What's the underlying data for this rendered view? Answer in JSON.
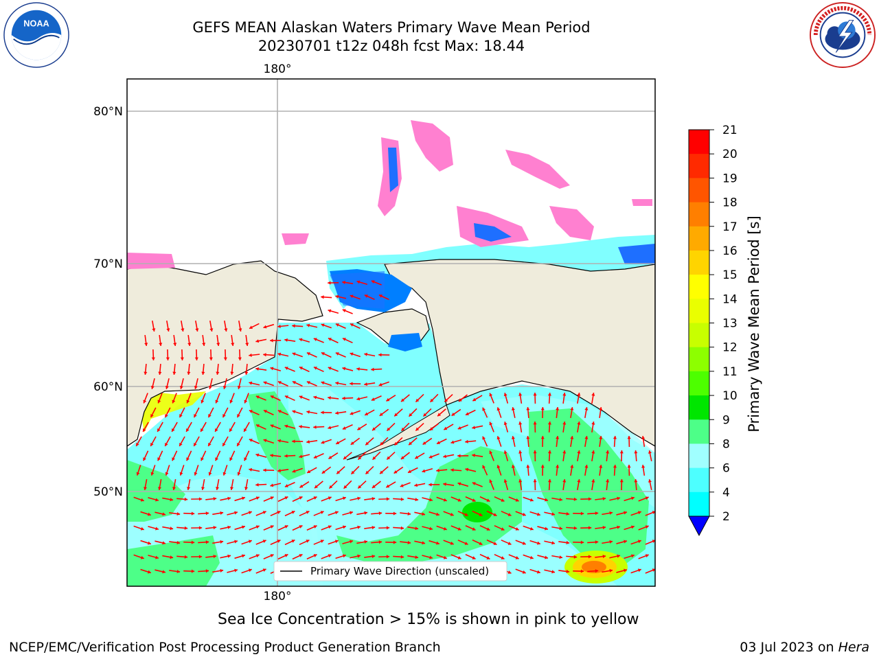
{
  "header": {
    "title_line_1": "GEFS MEAN Alaskan Waters Primary Wave Mean Period",
    "title_line_2": "20230701 t12z 048h fcst   Max: 18.44"
  },
  "logos": {
    "left": {
      "text": "NOAA",
      "ring_text": "NATIONAL OCEANIC AND ATMOSPHERIC ADMINISTRATION · U.S. DEPARTMENT OF COMMERCE",
      "icon": "noaa-logo"
    },
    "right": {
      "ring_text": "NATIONAL WEATHER SERVICE",
      "icon": "nws-logo"
    }
  },
  "map": {
    "top_lon_label": "180°",
    "bottom_lon_label": "180°",
    "lat_labels": [
      "80°N",
      "70°N",
      "60°N",
      "50°N"
    ],
    "legend_label": "Primary Wave Direction (unscaled)",
    "arrow_color": "#ff0000",
    "land_color": "#efecdc",
    "ocean_color": "#80ffff"
  },
  "colorbar": {
    "label": "Primary Wave Mean Period [s]",
    "ticks": [
      "21",
      "20",
      "19",
      "18",
      "17",
      "16",
      "15",
      "14",
      "13",
      "12",
      "11",
      "10",
      "9",
      "8",
      "6",
      "4",
      "2"
    ],
    "colors": [
      "#ff0000",
      "#ff2a00",
      "#ff5500",
      "#ff7f00",
      "#ffaa00",
      "#ffd400",
      "#ffff00",
      "#eaff00",
      "#c8ff00",
      "#8dff00",
      "#4dff00",
      "#00e600",
      "#4dff88",
      "#a0ffff",
      "#4dffff",
      "#00ffff",
      "#007fff"
    ],
    "extend_color": "#0000ff"
  },
  "notes": {
    "ice": "Sea Ice Concentration > 15% is shown in pink to yellow"
  },
  "footer": {
    "left": "NCEP/EMC/Verification Post Processing Product Generation Branch",
    "right_date": "03 Jul 2023 on ",
    "right_host": "Hera"
  }
}
